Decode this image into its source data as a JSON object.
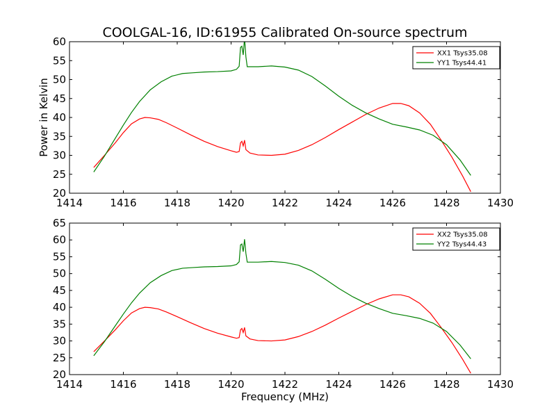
{
  "chart_data": [
    {
      "type": "line",
      "title": "COOLGAL-16, ID:61955 Calibrated On-source spectrum",
      "xlabel": "",
      "ylabel": "Power in Kelvin",
      "xlim": [
        1414,
        1430
      ],
      "ylim": [
        20,
        60
      ],
      "xticks": [
        1414,
        1416,
        1418,
        1420,
        1422,
        1424,
        1426,
        1428,
        1430
      ],
      "yticks": [
        20,
        25,
        30,
        35,
        40,
        45,
        50,
        55,
        60
      ],
      "grid": false,
      "legend_position": "top-right",
      "series": [
        {
          "name": "XX1 Tsys35.08",
          "color": "#ff0000",
          "points": [
            [
              1414.9,
              26.8
            ],
            [
              1415.3,
              30.0
            ],
            [
              1415.7,
              33.3
            ],
            [
              1416.0,
              36.0
            ],
            [
              1416.3,
              38.3
            ],
            [
              1416.6,
              39.6
            ],
            [
              1416.8,
              40.0
            ],
            [
              1417.0,
              39.9
            ],
            [
              1417.3,
              39.5
            ],
            [
              1417.6,
              38.6
            ],
            [
              1418.0,
              37.2
            ],
            [
              1418.5,
              35.4
            ],
            [
              1419.0,
              33.7
            ],
            [
              1419.5,
              32.3
            ],
            [
              1420.0,
              31.2
            ],
            [
              1420.2,
              30.8
            ],
            [
              1420.3,
              31.0
            ],
            [
              1420.35,
              33.3
            ],
            [
              1420.4,
              33.7
            ],
            [
              1420.45,
              32.5
            ],
            [
              1420.5,
              34.0
            ],
            [
              1420.55,
              31.5
            ],
            [
              1420.7,
              30.6
            ],
            [
              1421.0,
              30.1
            ],
            [
              1421.5,
              30.0
            ],
            [
              1422.0,
              30.3
            ],
            [
              1422.5,
              31.3
            ],
            [
              1423.0,
              32.8
            ],
            [
              1423.5,
              34.7
            ],
            [
              1424.0,
              36.8
            ],
            [
              1424.5,
              38.8
            ],
            [
              1425.0,
              40.8
            ],
            [
              1425.5,
              42.5
            ],
            [
              1426.0,
              43.7
            ],
            [
              1426.3,
              43.7
            ],
            [
              1426.6,
              43.1
            ],
            [
              1427.0,
              41.2
            ],
            [
              1427.4,
              38.2
            ],
            [
              1427.8,
              34.0
            ],
            [
              1428.2,
              29.5
            ],
            [
              1428.6,
              24.5
            ],
            [
              1428.9,
              20.4
            ]
          ]
        },
        {
          "name": "YY1 Tsys44.41",
          "color": "#008000",
          "points": [
            [
              1414.9,
              25.6
            ],
            [
              1415.3,
              29.8
            ],
            [
              1415.7,
              34.5
            ],
            [
              1416.0,
              38.0
            ],
            [
              1416.3,
              41.3
            ],
            [
              1416.6,
              44.2
            ],
            [
              1417.0,
              47.3
            ],
            [
              1417.4,
              49.4
            ],
            [
              1417.8,
              50.9
            ],
            [
              1418.2,
              51.6
            ],
            [
              1418.6,
              51.8
            ],
            [
              1419.0,
              52.0
            ],
            [
              1419.5,
              52.1
            ],
            [
              1420.0,
              52.3
            ],
            [
              1420.2,
              52.7
            ],
            [
              1420.3,
              53.5
            ],
            [
              1420.35,
              58.5
            ],
            [
              1420.4,
              58.8
            ],
            [
              1420.45,
              56.5
            ],
            [
              1420.5,
              61.0
            ],
            [
              1420.55,
              56.0
            ],
            [
              1420.6,
              53.4
            ],
            [
              1421.0,
              53.4
            ],
            [
              1421.5,
              53.6
            ],
            [
              1422.0,
              53.3
            ],
            [
              1422.5,
              52.5
            ],
            [
              1423.0,
              50.8
            ],
            [
              1423.5,
              48.3
            ],
            [
              1424.0,
              45.6
            ],
            [
              1424.5,
              43.2
            ],
            [
              1425.0,
              41.2
            ],
            [
              1425.5,
              39.6
            ],
            [
              1426.0,
              38.2
            ],
            [
              1426.5,
              37.5
            ],
            [
              1427.0,
              36.7
            ],
            [
              1427.5,
              35.3
            ],
            [
              1428.0,
              32.8
            ],
            [
              1428.5,
              28.8
            ],
            [
              1428.9,
              24.7
            ]
          ]
        }
      ]
    },
    {
      "type": "line",
      "title": "",
      "xlabel": "Frequency (MHz)",
      "ylabel": "",
      "xlim": [
        1414,
        1430
      ],
      "ylim": [
        20,
        65
      ],
      "xticks": [
        1414,
        1416,
        1418,
        1420,
        1422,
        1424,
        1426,
        1428,
        1430
      ],
      "yticks": [
        20,
        25,
        30,
        35,
        40,
        45,
        50,
        55,
        60,
        65
      ],
      "grid": false,
      "legend_position": "top-right",
      "series": [
        {
          "name": "XX2 Tsys35.08",
          "color": "#ff0000",
          "points": [
            [
              1414.9,
              26.8
            ],
            [
              1415.3,
              30.0
            ],
            [
              1415.7,
              33.3
            ],
            [
              1416.0,
              36.0
            ],
            [
              1416.3,
              38.3
            ],
            [
              1416.6,
              39.6
            ],
            [
              1416.8,
              40.0
            ],
            [
              1417.0,
              39.9
            ],
            [
              1417.3,
              39.5
            ],
            [
              1417.6,
              38.6
            ],
            [
              1418.0,
              37.2
            ],
            [
              1418.5,
              35.4
            ],
            [
              1419.0,
              33.7
            ],
            [
              1419.5,
              32.3
            ],
            [
              1420.0,
              31.2
            ],
            [
              1420.2,
              30.8
            ],
            [
              1420.3,
              31.0
            ],
            [
              1420.35,
              33.3
            ],
            [
              1420.4,
              33.7
            ],
            [
              1420.45,
              32.5
            ],
            [
              1420.5,
              34.0
            ],
            [
              1420.55,
              31.5
            ],
            [
              1420.7,
              30.6
            ],
            [
              1421.0,
              30.1
            ],
            [
              1421.5,
              30.0
            ],
            [
              1422.0,
              30.3
            ],
            [
              1422.5,
              31.3
            ],
            [
              1423.0,
              32.8
            ],
            [
              1423.5,
              34.7
            ],
            [
              1424.0,
              36.8
            ],
            [
              1424.5,
              38.8
            ],
            [
              1425.0,
              40.8
            ],
            [
              1425.5,
              42.5
            ],
            [
              1426.0,
              43.7
            ],
            [
              1426.3,
              43.7
            ],
            [
              1426.6,
              43.1
            ],
            [
              1427.0,
              41.2
            ],
            [
              1427.4,
              38.2
            ],
            [
              1427.8,
              34.0
            ],
            [
              1428.2,
              29.5
            ],
            [
              1428.6,
              24.5
            ],
            [
              1428.9,
              20.4
            ]
          ]
        },
        {
          "name": "YY2 Tsys44.43",
          "color": "#008000",
          "points": [
            [
              1414.9,
              25.6
            ],
            [
              1415.3,
              29.8
            ],
            [
              1415.7,
              34.5
            ],
            [
              1416.0,
              38.0
            ],
            [
              1416.3,
              41.3
            ],
            [
              1416.6,
              44.2
            ],
            [
              1417.0,
              47.3
            ],
            [
              1417.4,
              49.4
            ],
            [
              1417.8,
              50.9
            ],
            [
              1418.2,
              51.6
            ],
            [
              1418.6,
              51.8
            ],
            [
              1419.0,
              52.0
            ],
            [
              1419.5,
              52.1
            ],
            [
              1420.0,
              52.3
            ],
            [
              1420.2,
              52.7
            ],
            [
              1420.3,
              53.5
            ],
            [
              1420.35,
              58.5
            ],
            [
              1420.4,
              58.8
            ],
            [
              1420.45,
              56.5
            ],
            [
              1420.5,
              60.2
            ],
            [
              1420.55,
              56.0
            ],
            [
              1420.6,
              53.4
            ],
            [
              1421.0,
              53.4
            ],
            [
              1421.5,
              53.6
            ],
            [
              1422.0,
              53.3
            ],
            [
              1422.5,
              52.5
            ],
            [
              1423.0,
              50.8
            ],
            [
              1423.5,
              48.3
            ],
            [
              1424.0,
              45.6
            ],
            [
              1424.5,
              43.2
            ],
            [
              1425.0,
              41.2
            ],
            [
              1425.5,
              39.6
            ],
            [
              1426.0,
              38.2
            ],
            [
              1426.5,
              37.5
            ],
            [
              1427.0,
              36.7
            ],
            [
              1427.5,
              35.3
            ],
            [
              1428.0,
              32.8
            ],
            [
              1428.5,
              28.8
            ],
            [
              1428.9,
              24.7
            ]
          ]
        }
      ]
    }
  ]
}
